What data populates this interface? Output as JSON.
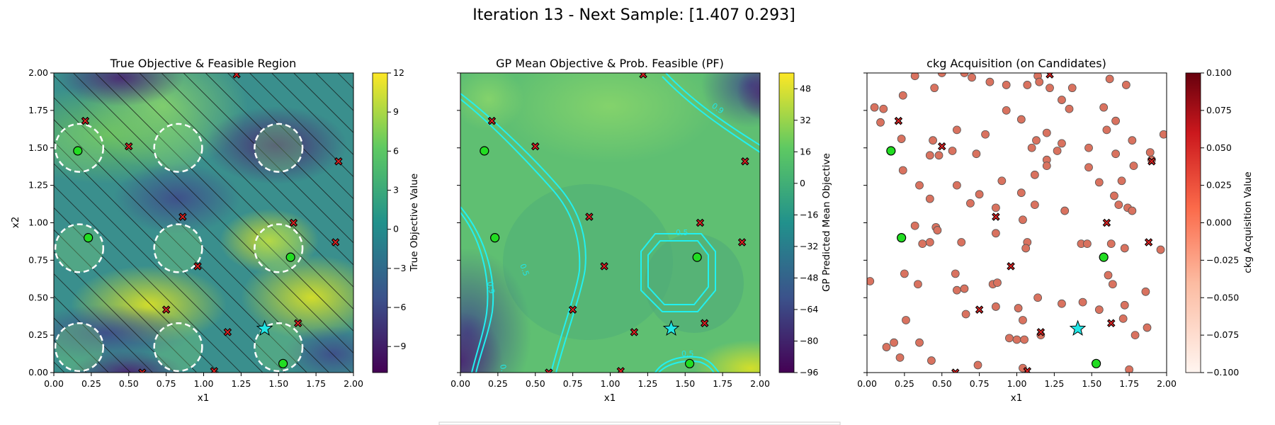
{
  "figure": {
    "suptitle": "Iteration 13 - Next Sample: [1.407 0.293]"
  },
  "colors": {
    "feasible_marker": "#22dd22",
    "infeasible_marker": "#dd2222",
    "next_sample_marker": "#22e6e6",
    "candidate_marker": "#d9725f",
    "pf_contour": "#22f0f0",
    "constraint_circle": "#ffffff"
  },
  "chart_data": [
    {
      "type": "contour",
      "title": "True Objective & Feasible Region",
      "xlabel": "x1",
      "ylabel": "x2",
      "xlim": [
        0,
        2
      ],
      "ylim": [
        0,
        2
      ],
      "xticks": [
        "0.00",
        "0.25",
        "0.50",
        "0.75",
        "1.00",
        "1.25",
        "1.50",
        "1.75",
        "2.00"
      ],
      "yticks": [
        "0.00",
        "0.25",
        "0.50",
        "0.75",
        "1.00",
        "1.25",
        "1.50",
        "1.75",
        "2.00"
      ],
      "colormap": "viridis",
      "colorbar": {
        "label": "True Objective Value",
        "ticks": [
          "12",
          "9",
          "6",
          "3",
          "0",
          "−3",
          "−6",
          "−9"
        ],
        "range": [
          -11,
          12
        ]
      },
      "infeasible_region_hatched": true,
      "feasible_circles": [
        {
          "cx": 0.17,
          "cy": 1.5,
          "r": 0.16
        },
        {
          "cx": 0.83,
          "cy": 1.5,
          "r": 0.16
        },
        {
          "cx": 1.5,
          "cy": 1.5,
          "r": 0.16
        },
        {
          "cx": 0.17,
          "cy": 0.83,
          "r": 0.16
        },
        {
          "cx": 0.83,
          "cy": 0.83,
          "r": 0.16
        },
        {
          "cx": 1.5,
          "cy": 0.83,
          "r": 0.16
        },
        {
          "cx": 0.17,
          "cy": 0.17,
          "r": 0.16
        },
        {
          "cx": 0.83,
          "cy": 0.17,
          "r": 0.16
        },
        {
          "cx": 1.5,
          "cy": 0.17,
          "r": 0.16
        }
      ]
    },
    {
      "type": "contour",
      "title": "GP Mean Objective & Prob. Feasible (PF)",
      "xlabel": "x1",
      "xlim": [
        0,
        2
      ],
      "ylim": [
        0,
        2
      ],
      "xticks": [
        "0.00",
        "0.25",
        "0.50",
        "0.75",
        "1.00",
        "1.25",
        "1.50",
        "1.75",
        "2.00"
      ],
      "colormap": "viridis",
      "colorbar": {
        "label": "GP Predicted Mean Objective",
        "ticks": [
          "48",
          "32",
          "16",
          "0",
          "−16",
          "−32",
          "−48",
          "−64",
          "−80",
          "−96"
        ],
        "range": [
          -96,
          56
        ]
      },
      "pf_contour_labels": [
        "0.9",
        "0.5",
        "0.9",
        "0.5",
        "0.5",
        "0."
      ]
    },
    {
      "type": "scatter",
      "title": "ckg Acquisition (on Candidates)",
      "xlabel": "x1",
      "xlim": [
        0,
        2
      ],
      "ylim": [
        0,
        2
      ],
      "xticks": [
        "0.00",
        "0.25",
        "0.50",
        "0.75",
        "1.00",
        "1.25",
        "1.50",
        "1.75",
        "2.00"
      ],
      "colormap": "Reds",
      "colorbar": {
        "label": "ckg Acquisition Value",
        "ticks": [
          "0.100",
          "0.075",
          "0.050",
          "0.025",
          "0.000",
          "−0.025",
          "−0.050",
          "−0.075",
          "−0.100"
        ],
        "range": [
          -0.1,
          0.1
        ]
      },
      "candidates": [
        [
          0.05,
          1.77
        ],
        [
          0.09,
          1.67
        ],
        [
          0.11,
          1.76
        ],
        [
          0.24,
          1.85
        ],
        [
          0.32,
          1.98
        ],
        [
          0.45,
          1.9
        ],
        [
          0.5,
          2.0
        ],
        [
          0.65,
          2.0
        ],
        [
          0.7,
          1.97
        ],
        [
          0.82,
          1.94
        ],
        [
          0.93,
          1.92
        ],
        [
          0.93,
          1.75
        ],
        [
          1.07,
          1.92
        ],
        [
          1.14,
          1.98
        ],
        [
          1.15,
          1.94
        ],
        [
          1.03,
          1.69
        ],
        [
          1.13,
          1.55
        ],
        [
          1.2,
          1.6
        ],
        [
          1.22,
          1.9
        ],
        [
          1.3,
          1.82
        ],
        [
          1.35,
          1.76
        ],
        [
          1.37,
          1.9
        ],
        [
          1.62,
          1.96
        ],
        [
          1.73,
          1.92
        ],
        [
          1.58,
          1.77
        ],
        [
          1.66,
          1.68
        ],
        [
          1.6,
          1.62
        ],
        [
          1.77,
          1.55
        ],
        [
          1.89,
          1.47
        ],
        [
          1.9,
          1.42
        ],
        [
          1.98,
          1.59
        ],
        [
          0.23,
          1.56
        ],
        [
          0.44,
          1.55
        ],
        [
          0.6,
          1.62
        ],
        [
          0.79,
          1.59
        ],
        [
          0.57,
          1.48
        ],
        [
          0.73,
          1.46
        ],
        [
          1.1,
          1.5
        ],
        [
          1.27,
          1.48
        ],
        [
          1.3,
          1.53
        ],
        [
          1.48,
          1.5
        ],
        [
          1.66,
          1.46
        ],
        [
          0.24,
          1.35
        ],
        [
          0.42,
          1.45
        ],
        [
          0.48,
          1.45
        ],
        [
          0.35,
          1.25
        ],
        [
          0.42,
          1.16
        ],
        [
          0.6,
          1.25
        ],
        [
          0.69,
          1.13
        ],
        [
          0.75,
          1.19
        ],
        [
          0.9,
          1.28
        ],
        [
          1.03,
          1.2
        ],
        [
          1.12,
          1.32
        ],
        [
          1.2,
          1.42
        ],
        [
          1.2,
          1.38
        ],
        [
          1.48,
          1.37
        ],
        [
          1.55,
          1.27
        ],
        [
          1.7,
          1.28
        ],
        [
          1.78,
          1.38
        ],
        [
          1.65,
          1.18
        ],
        [
          1.68,
          1.12
        ],
        [
          1.74,
          1.1
        ],
        [
          1.77,
          1.08
        ],
        [
          1.32,
          1.08
        ],
        [
          1.12,
          1.12
        ],
        [
          0.86,
          1.1
        ],
        [
          1.04,
          1.02
        ],
        [
          0.32,
          0.98
        ],
        [
          0.46,
          0.97
        ],
        [
          0.47,
          0.95
        ],
        [
          0.37,
          0.86
        ],
        [
          0.42,
          0.87
        ],
        [
          0.63,
          0.87
        ],
        [
          0.86,
          0.93
        ],
        [
          1.07,
          0.87
        ],
        [
          1.06,
          0.83
        ],
        [
          1.43,
          0.86
        ],
        [
          1.47,
          0.86
        ],
        [
          1.63,
          0.86
        ],
        [
          1.72,
          0.83
        ],
        [
          1.96,
          0.82
        ],
        [
          0.25,
          0.66
        ],
        [
          0.34,
          0.59
        ],
        [
          0.59,
          0.66
        ],
        [
          0.6,
          0.55
        ],
        [
          0.65,
          0.56
        ],
        [
          0.84,
          0.59
        ],
        [
          0.87,
          0.6
        ],
        [
          0.66,
          0.39
        ],
        [
          0.86,
          0.44
        ],
        [
          1.01,
          0.43
        ],
        [
          1.14,
          0.5
        ],
        [
          1.3,
          0.46
        ],
        [
          1.44,
          0.47
        ],
        [
          1.72,
          0.45
        ],
        [
          1.86,
          0.54
        ],
        [
          1.64,
          0.59
        ],
        [
          1.61,
          0.65
        ],
        [
          1.87,
          0.3
        ],
        [
          1.79,
          0.25
        ],
        [
          1.71,
          0.36
        ],
        [
          1.55,
          0.42
        ],
        [
          1.04,
          0.35
        ],
        [
          0.95,
          0.23
        ],
        [
          1.0,
          0.22
        ],
        [
          1.05,
          0.22
        ],
        [
          1.16,
          0.25
        ],
        [
          0.35,
          0.2
        ],
        [
          0.26,
          0.35
        ],
        [
          0.13,
          0.17
        ],
        [
          0.18,
          0.2
        ],
        [
          0.22,
          0.1
        ],
        [
          0.43,
          0.08
        ],
        [
          0.74,
          0.05
        ],
        [
          1.04,
          0.03
        ],
        [
          1.75,
          0.02
        ],
        [
          0.02,
          0.61
        ]
      ]
    }
  ],
  "shared_points": {
    "feasible": [
      [
        0.16,
        1.48
      ],
      [
        0.23,
        0.9
      ],
      [
        1.58,
        0.77
      ],
      [
        1.53,
        0.06
      ]
    ],
    "infeasible": [
      [
        0.21,
        1.68
      ],
      [
        0.5,
        1.51
      ],
      [
        1.22,
        1.99
      ],
      [
        1.9,
        1.41
      ],
      [
        0.86,
        1.04
      ],
      [
        1.6,
        1.0
      ],
      [
        1.88,
        0.87
      ],
      [
        0.96,
        0.71
      ],
      [
        0.75,
        0.42
      ],
      [
        1.16,
        0.27
      ],
      [
        1.63,
        0.33
      ],
      [
        0.59,
        0.0
      ],
      [
        1.07,
        0.01
      ]
    ],
    "next_sample": [
      1.407,
      0.293
    ]
  }
}
